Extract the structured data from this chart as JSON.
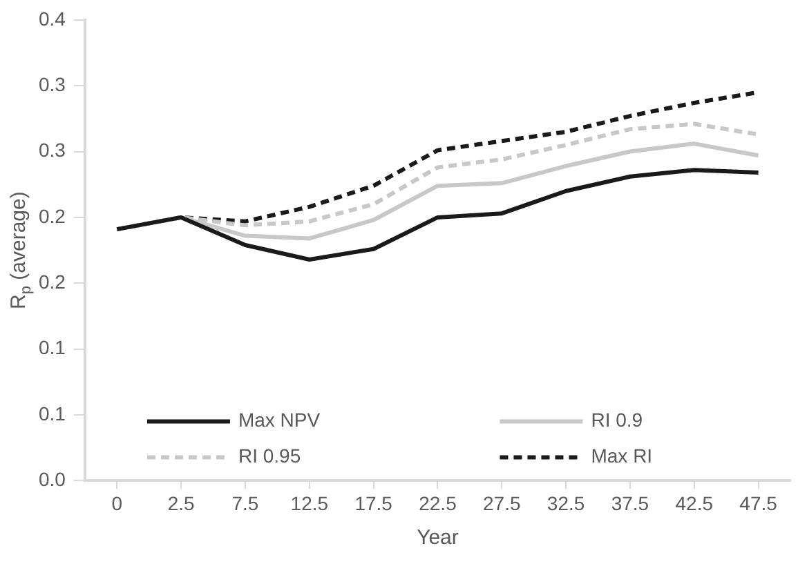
{
  "chart_data": {
    "type": "line",
    "xlabel": "Year",
    "ylabel": "R$_{p}$ (average)",
    "categories": [
      "0",
      "2.5",
      "7.5",
      "12.5",
      "17.5",
      "22.5",
      "27.5",
      "32.5",
      "37.5",
      "42.5",
      "47.5"
    ],
    "series": [
      {
        "name": "Max NPV",
        "color": "#1a1a1a",
        "line_style": "solid",
        "values": [
          0.191,
          0.2,
          0.179,
          0.168,
          0.176,
          0.2,
          0.203,
          0.22,
          0.231,
          0.236,
          0.234
        ]
      },
      {
        "name": "RI 0.9",
        "color": "#c8c8c8",
        "line_style": "solid",
        "values": [
          0.191,
          0.2,
          0.186,
          0.184,
          0.198,
          0.224,
          0.226,
          0.239,
          0.25,
          0.256,
          0.247
        ]
      },
      {
        "name": "RI 0.95",
        "color": "#c8c8c8",
        "line_style": "dashed",
        "values": [
          0.191,
          0.2,
          0.194,
          0.197,
          0.21,
          0.238,
          0.244,
          0.255,
          0.267,
          0.271,
          0.263
        ]
      },
      {
        "name": "Max RI",
        "color": "#1a1a1a",
        "line_style": "dashed",
        "values": [
          0.191,
          0.2,
          0.197,
          0.208,
          0.224,
          0.251,
          0.258,
          0.265,
          0.277,
          0.287,
          0.295
        ]
      }
    ],
    "ylim": [
      0,
      0.35
    ],
    "yticks": [
      {
        "value": 0,
        "label": "0.0"
      },
      {
        "value": 0.05,
        "label": "0.1"
      },
      {
        "value": 0.1,
        "label": "0.1"
      },
      {
        "value": 0.15,
        "label": "0.2"
      },
      {
        "value": 0.2,
        "label": "0.2"
      },
      {
        "value": 0.25,
        "label": "0.3"
      },
      {
        "value": 0.3,
        "label": "0.3"
      },
      {
        "value": 0.35,
        "label": "0.4"
      }
    ],
    "grid": false,
    "legend": "bottom",
    "marker": "none"
  }
}
